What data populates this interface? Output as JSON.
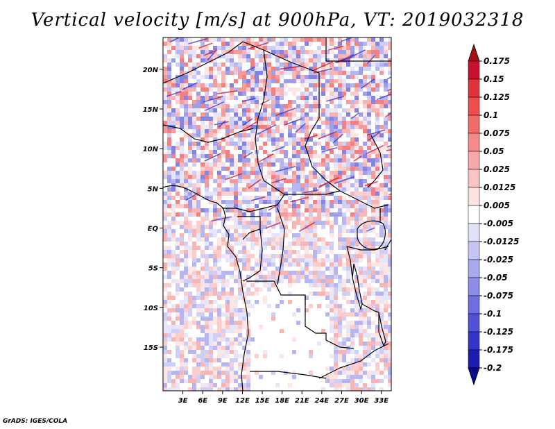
{
  "title": "Vertical velocity [m/s] at 900hPa, VT: 2019032318",
  "credit": "GrADS: IGES/COLA",
  "chart_data": {
    "type": "heatmap",
    "variable": "Vertical velocity",
    "units": "m/s",
    "level": "900hPa",
    "valid_time": "2019032318",
    "lon_range": [
      0,
      34.5
    ],
    "lat_range": [
      -20.5,
      24
    ],
    "x_tick_values": [
      3,
      6,
      9,
      12,
      15,
      18,
      21,
      24,
      27,
      30,
      33
    ],
    "x_tick_labels": [
      "3E",
      "6E",
      "9E",
      "12E",
      "15E",
      "18E",
      "21E",
      "24E",
      "27E",
      "30E",
      "33E"
    ],
    "y_tick_values": [
      20,
      15,
      10,
      5,
      0,
      -5,
      -10,
      -15
    ],
    "y_tick_labels": [
      "20N",
      "15N",
      "10N",
      "5N",
      "EQ",
      "5S",
      "10S",
      "15S"
    ],
    "colorbar": {
      "labels": [
        "0.175",
        "0.15",
        "0.125",
        "0.1",
        "0.075",
        "0.05",
        "0.025",
        "0.0125",
        "0.005",
        "-0.005",
        "-0.0125",
        "-0.025",
        "-0.05",
        "-0.075",
        "-0.1",
        "-0.125",
        "-0.175",
        "-0.2"
      ],
      "colors": [
        "#a50f15",
        "#c8102e",
        "#e0323b",
        "#ee4d4d",
        "#f26b6b",
        "#f58a8a",
        "#f7a8a8",
        "#fac4c4",
        "#fde2e2",
        "#ffffff",
        "#e1e1fa",
        "#c6c6f4",
        "#a9a9ee",
        "#8d8de8",
        "#6e6ee0",
        "#5252d6",
        "#3434c8",
        "#1c1cb0",
        "#0a0a8a"
      ]
    }
  }
}
